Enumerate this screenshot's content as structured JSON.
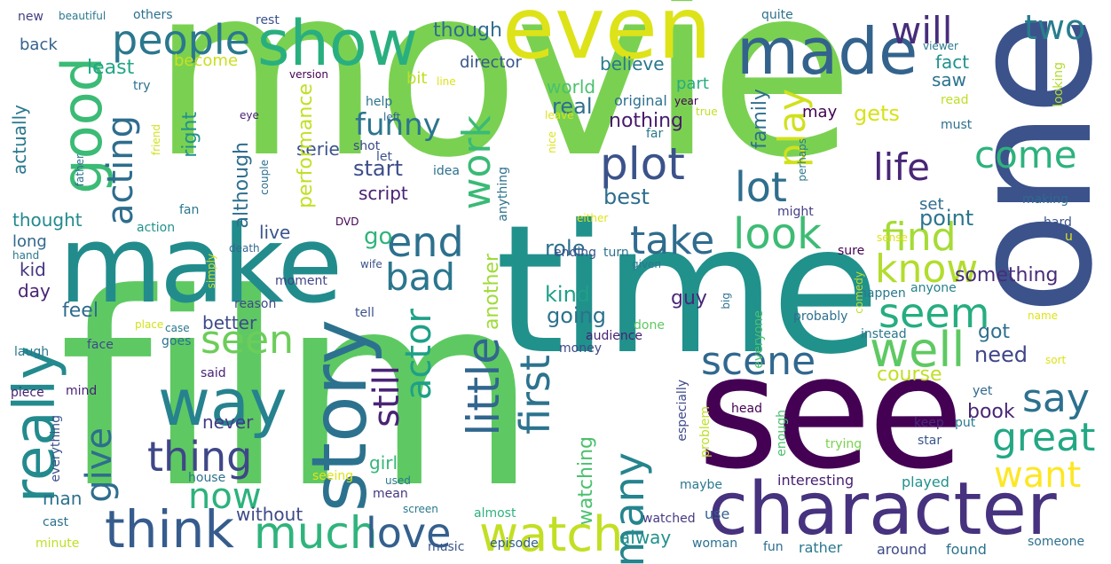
{
  "words": [
    {
      "key": "movie",
      "text": "movie",
      "color": "#7ad151"
    },
    {
      "key": "film",
      "text": "film",
      "color": "#5ec962"
    },
    {
      "key": "one",
      "text": "one",
      "color": "#3b528b"
    },
    {
      "key": "time",
      "text": "time",
      "color": "#21918c"
    },
    {
      "key": "see",
      "text": "see",
      "color": "#440154"
    },
    {
      "key": "make",
      "text": "make",
      "color": "#228c8d"
    },
    {
      "key": "even",
      "text": "even",
      "color": "#dde318"
    },
    {
      "key": "character",
      "text": "character",
      "color": "#46327e"
    },
    {
      "key": "story",
      "text": "story",
      "color": "#2c728e"
    },
    {
      "key": "show",
      "text": "show",
      "color": "#29af7f"
    },
    {
      "key": "made",
      "text": "made",
      "color": "#33638d"
    },
    {
      "key": "way",
      "text": "way",
      "color": "#26828e"
    },
    {
      "key": "good",
      "text": "good",
      "color": "#3bbb75"
    },
    {
      "key": "really",
      "text": "really",
      "color": "#238a8d"
    },
    {
      "key": "people",
      "text": "people",
      "color": "#2a788e"
    },
    {
      "key": "watch",
      "text": "watch",
      "color": "#c2df23"
    },
    {
      "key": "think",
      "text": "think",
      "color": "#365c8d"
    },
    {
      "key": "much",
      "text": "much",
      "color": "#2fb47c"
    },
    {
      "key": "plot",
      "text": "plot",
      "color": "#3b528b"
    },
    {
      "key": "end",
      "text": "end",
      "color": "#2d708e"
    },
    {
      "key": "take",
      "text": "take",
      "color": "#2f6c8e"
    },
    {
      "key": "look",
      "text": "look",
      "color": "#3dbc74"
    },
    {
      "key": "scene",
      "text": "scene",
      "color": "#31688e"
    },
    {
      "key": "well",
      "text": "well",
      "color": "#5ec962"
    },
    {
      "key": "seem",
      "text": "seem",
      "color": "#26ad81"
    },
    {
      "key": "know",
      "text": "know",
      "color": "#b2dd2d"
    },
    {
      "key": "find",
      "text": "find",
      "color": "#a5db36"
    },
    {
      "key": "life",
      "text": "life",
      "color": "#482677"
    },
    {
      "key": "lot",
      "text": "lot",
      "color": "#2e6e8e"
    },
    {
      "key": "come",
      "text": "come",
      "color": "#2db27d"
    },
    {
      "key": "will",
      "text": "will",
      "color": "#472d7b"
    },
    {
      "key": "two",
      "text": "two",
      "color": "#287d8e"
    },
    {
      "key": "work",
      "text": "work",
      "color": "#3aba76"
    },
    {
      "key": "play",
      "text": "play",
      "color": "#d0e11c"
    },
    {
      "key": "little",
      "text": "little",
      "color": "#31678e"
    },
    {
      "key": "first",
      "text": "first",
      "color": "#2c738e"
    },
    {
      "key": "still",
      "text": "still",
      "color": "#482475"
    },
    {
      "key": "actor",
      "text": "actor",
      "color": "#1fa088"
    },
    {
      "key": "bad",
      "text": "bad",
      "color": "#2a768e"
    },
    {
      "key": "seen",
      "text": "seen",
      "color": "#6ccd5a"
    },
    {
      "key": "thing",
      "text": "thing",
      "color": "#3f4788"
    },
    {
      "key": "acting",
      "text": "acting",
      "color": "#2e6d8e"
    },
    {
      "key": "give",
      "text": "give",
      "color": "#2e6e8e"
    },
    {
      "key": "many",
      "text": "many",
      "color": "#25848e"
    },
    {
      "key": "love",
      "text": "love",
      "color": "#34608d"
    },
    {
      "key": "great",
      "text": "great",
      "color": "#22a884"
    },
    {
      "key": "want",
      "text": "want",
      "color": "#fde725"
    },
    {
      "key": "say",
      "text": "say",
      "color": "#2c718e"
    },
    {
      "key": "now",
      "text": "now",
      "color": "#2db27d"
    },
    {
      "key": "may",
      "text": "may",
      "color": "#440154"
    },
    {
      "key": "serie",
      "text": "serie",
      "color": "#3b528b"
    },
    {
      "key": "back",
      "text": "back",
      "color": "#34618d"
    },
    {
      "key": "least",
      "text": "least",
      "color": "#22a785"
    },
    {
      "key": "become",
      "text": "become",
      "color": "#c8e020"
    },
    {
      "key": "though",
      "text": "though",
      "color": "#2e6e8e"
    },
    {
      "key": "bit",
      "text": "bit",
      "color": "#bddf26"
    },
    {
      "key": "director",
      "text": "director",
      "color": "#39568c"
    },
    {
      "key": "believe",
      "text": "believe",
      "color": "#2a788e"
    },
    {
      "key": "part",
      "text": "part",
      "color": "#25ab82"
    },
    {
      "key": "fact",
      "text": "fact",
      "color": "#21918c"
    },
    {
      "key": "saw",
      "text": "saw",
      "color": "#2c738e"
    },
    {
      "key": "world",
      "text": "world",
      "color": "#4ac16d"
    },
    {
      "key": "real",
      "text": "real",
      "color": "#2d708e"
    },
    {
      "key": "nothing",
      "text": "nothing",
      "color": "#481a6c"
    },
    {
      "key": "funny",
      "text": "funny",
      "color": "#2b758e"
    },
    {
      "key": "actually",
      "text": "actually",
      "color": "#2a788e"
    },
    {
      "key": "performance",
      "text": "performance",
      "color": "#c2df23"
    },
    {
      "key": "family",
      "text": "family",
      "color": "#2d708e"
    },
    {
      "key": "gets",
      "text": "gets",
      "color": "#d8e219"
    },
    {
      "key": "right",
      "text": "right",
      "color": "#21918c"
    },
    {
      "key": "although",
      "text": "although",
      "color": "#2e6f8e"
    },
    {
      "key": "start",
      "text": "start",
      "color": "#3d4e8a"
    },
    {
      "key": "script",
      "text": "script",
      "color": "#482173"
    },
    {
      "key": "best",
      "text": "best",
      "color": "#2e6e8e"
    },
    {
      "key": "thought",
      "text": "thought",
      "color": "#23898e"
    },
    {
      "key": "point",
      "text": "point",
      "color": "#2b758e"
    },
    {
      "key": "set",
      "text": "set",
      "color": "#2f6c8e"
    },
    {
      "key": "live",
      "text": "live",
      "color": "#39558c"
    },
    {
      "key": "go",
      "text": "go",
      "color": "#2fb47c"
    },
    {
      "key": "role",
      "text": "role",
      "color": "#2d708e"
    },
    {
      "key": "kind",
      "text": "kind",
      "color": "#1f9f88"
    },
    {
      "key": "another",
      "text": "another",
      "color": "#a0da39"
    },
    {
      "key": "guy",
      "text": "guy",
      "color": "#482878"
    },
    {
      "key": "something",
      "text": "something",
      "color": "#472c7a"
    },
    {
      "key": "kid",
      "text": "kid",
      "color": "#453781"
    },
    {
      "key": "day",
      "text": "day",
      "color": "#482374"
    },
    {
      "key": "feel",
      "text": "feel",
      "color": "#2f6b8e"
    },
    {
      "key": "better",
      "text": "better",
      "color": "#3e4a89"
    },
    {
      "key": "going",
      "text": "going",
      "color": "#2c728e"
    },
    {
      "key": "got",
      "text": "got",
      "color": "#2e6f8e"
    },
    {
      "key": "need",
      "text": "need",
      "color": "#404588"
    },
    {
      "key": "course",
      "text": "course",
      "color": "#c0df25"
    },
    {
      "key": "book",
      "text": "book",
      "color": "#482576"
    },
    {
      "key": "never",
      "text": "never",
      "color": "#433e85"
    },
    {
      "key": "girl",
      "text": "girl",
      "color": "#35b779"
    },
    {
      "key": "watching",
      "text": "watching",
      "color": "#4ac16d"
    },
    {
      "key": "without",
      "text": "without",
      "color": "#3e4989"
    },
    {
      "key": "man",
      "text": "man",
      "color": "#2c718e"
    },
    {
      "key": "alway",
      "text": "alway",
      "color": "#21918c"
    },
    {
      "key": "action",
      "text": "action",
      "color": "#21918c"
    },
    {
      "key": "fan",
      "text": "fan",
      "color": "#2a788e"
    },
    {
      "key": "long",
      "text": "long",
      "color": "#31688e"
    },
    {
      "key": "help",
      "text": "help",
      "color": "#2c728e"
    },
    {
      "key": "original",
      "text": "original",
      "color": "#2d708e"
    },
    {
      "key": "looking",
      "text": "looking",
      "color": "#b2dd2d"
    },
    {
      "key": "read",
      "text": "read",
      "color": "#bddf26"
    },
    {
      "key": "must",
      "text": "must",
      "color": "#2c718e"
    },
    {
      "key": "making",
      "text": "making",
      "color": "#30698e"
    },
    {
      "key": "might",
      "text": "might",
      "color": "#433e85"
    },
    {
      "key": "sure",
      "text": "sure",
      "color": "#440154"
    },
    {
      "key": "hard",
      "text": "hard",
      "color": "#3b528b"
    },
    {
      "key": "anyone",
      "text": "anyone",
      "color": "#26828e"
    },
    {
      "key": "happen",
      "text": "happen",
      "color": "#2a788e"
    },
    {
      "key": "probably",
      "text": "probably",
      "color": "#2c718e"
    },
    {
      "key": "instead",
      "text": "instead",
      "color": "#2a768e"
    },
    {
      "key": "interesting",
      "text": "interesting",
      "color": "#482173"
    },
    {
      "key": "played",
      "text": "played",
      "color": "#21918c"
    },
    {
      "key": "especially",
      "text": "especially",
      "color": "#3e4a89"
    },
    {
      "key": "trying",
      "text": "trying",
      "color": "#7ad151"
    },
    {
      "key": "star",
      "text": "star",
      "color": "#39568c"
    },
    {
      "key": "keep",
      "text": "keep",
      "color": "#472c7a"
    },
    {
      "key": "put",
      "text": "put",
      "color": "#2a788e"
    },
    {
      "key": "yet",
      "text": "yet",
      "color": "#31688e"
    },
    {
      "key": "around",
      "text": "around",
      "color": "#3e4989"
    },
    {
      "key": "found",
      "text": "found",
      "color": "#2c728e"
    },
    {
      "key": "someone",
      "text": "someone",
      "color": "#2d708e"
    },
    {
      "key": "rather",
      "text": "rather",
      "color": "#2a788e"
    },
    {
      "key": "fun",
      "text": "fun",
      "color": "#2e6e8e"
    },
    {
      "key": "woman",
      "text": "woman",
      "color": "#2c718e"
    },
    {
      "key": "use",
      "text": "use",
      "color": "#34608d"
    },
    {
      "key": "watched",
      "text": "watched",
      "color": "#443a83"
    },
    {
      "key": "maybe",
      "text": "maybe",
      "color": "#2a788e"
    },
    {
      "key": "almost",
      "text": "almost",
      "color": "#2db27d"
    },
    {
      "key": "audience",
      "text": "audience",
      "color": "#482173"
    },
    {
      "key": "money",
      "text": "money",
      "color": "#3e4a89"
    },
    {
      "key": "done",
      "text": "done",
      "color": "#5ec962"
    },
    {
      "key": "ending",
      "text": "ending",
      "color": "#3b528b"
    },
    {
      "key": "turn",
      "text": "turn",
      "color": "#2c718e"
    },
    {
      "key": "DVD",
      "text": "DVD",
      "color": "#440154"
    },
    {
      "key": "death",
      "text": "death",
      "color": "#31688e"
    },
    {
      "key": "wife",
      "text": "wife",
      "color": "#3b528b"
    },
    {
      "key": "moment",
      "text": "moment",
      "color": "#404588"
    },
    {
      "key": "reason",
      "text": "reason",
      "color": "#3e4a89"
    },
    {
      "key": "tell",
      "text": "tell",
      "color": "#3b528b"
    },
    {
      "key": "said",
      "text": "said",
      "color": "#482374"
    },
    {
      "key": "goes",
      "text": "goes",
      "color": "#2c718e"
    },
    {
      "key": "case",
      "text": "case",
      "color": "#2a788e"
    },
    {
      "key": "place",
      "text": "place",
      "color": "#d2e21b"
    },
    {
      "key": "face",
      "text": "face",
      "color": "#3e4989"
    },
    {
      "key": "laugh",
      "text": "laugh",
      "color": "#2a768e"
    },
    {
      "key": "piece",
      "text": "piece",
      "color": "#482173"
    },
    {
      "key": "mind",
      "text": "mind",
      "color": "#482374"
    },
    {
      "key": "everything",
      "text": "everything",
      "color": "#3b528b"
    },
    {
      "key": "couple",
      "text": "couple",
      "color": "#2d708e"
    },
    {
      "key": "used",
      "text": "used",
      "color": "#2a788e"
    },
    {
      "key": "house",
      "text": "house",
      "color": "#2c728e"
    },
    {
      "key": "seeing",
      "text": "seeing",
      "color": "#dde318"
    },
    {
      "key": "mean",
      "text": "mean",
      "color": "#453781"
    },
    {
      "key": "cast",
      "text": "cast",
      "color": "#2c718e"
    },
    {
      "key": "minute",
      "text": "minute",
      "color": "#bddf26"
    },
    {
      "key": "screen",
      "text": "screen",
      "color": "#2a788e"
    },
    {
      "key": "episode",
      "text": "episode",
      "color": "#34608d"
    },
    {
      "key": "music",
      "text": "music",
      "color": "#39568c"
    },
    {
      "key": "new",
      "text": "new",
      "color": "#433e85"
    },
    {
      "key": "beautiful",
      "text": "beautiful",
      "color": "#2a788e"
    },
    {
      "key": "others",
      "text": "others",
      "color": "#2c718e"
    },
    {
      "key": "rest",
      "text": "rest",
      "color": "#3b528b"
    },
    {
      "key": "version",
      "text": "version",
      "color": "#440154"
    },
    {
      "key": "quite",
      "text": "quite",
      "color": "#2c728e"
    },
    {
      "key": "viewer",
      "text": "viewer",
      "color": "#2a788e"
    },
    {
      "key": "try",
      "text": "try",
      "color": "#2c718e"
    },
    {
      "key": "line",
      "text": "line",
      "color": "#dde318"
    },
    {
      "key": "year",
      "text": "year",
      "color": "#440154"
    },
    {
      "key": "eye",
      "text": "eye",
      "color": "#482173"
    },
    {
      "key": "left",
      "text": "left",
      "color": "#31688e"
    },
    {
      "key": "true",
      "text": "true",
      "color": "#c0df25"
    },
    {
      "key": "leave",
      "text": "leave",
      "color": "#dde318"
    },
    {
      "key": "father",
      "text": "father",
      "color": "#2c718e"
    },
    {
      "key": "friend",
      "text": "friend",
      "color": "#d2e21b"
    },
    {
      "key": "shot",
      "text": "shot",
      "color": "#3e4989"
    },
    {
      "key": "nice",
      "text": "nice",
      "color": "#dde318"
    },
    {
      "key": "far",
      "text": "far",
      "color": "#2a788e"
    },
    {
      "key": "idea",
      "text": "idea",
      "color": "#2c718e"
    },
    {
      "key": "perhaps",
      "text": "perhaps",
      "color": "#2a788e"
    },
    {
      "key": "let",
      "text": "let",
      "color": "#3b528b"
    },
    {
      "key": "anything",
      "text": "anything",
      "color": "#2c718e"
    },
    {
      "key": "either",
      "text": "either",
      "color": "#dde318"
    },
    {
      "key": "given",
      "text": "given",
      "color": "#2a788e"
    },
    {
      "key": "simply",
      "text": "simply",
      "color": "#d2e21b"
    },
    {
      "key": "hand",
      "text": "hand",
      "color": "#2a788e"
    },
    {
      "key": "sense",
      "text": "sense",
      "color": "#dde318"
    },
    {
      "key": "comedy",
      "text": "comedy",
      "color": "#bddf26"
    },
    {
      "key": "big",
      "text": "big",
      "color": "#2c718e"
    },
    {
      "key": "everyone",
      "text": "everyone",
      "color": "#4ac16d"
    },
    {
      "key": "name",
      "text": "name",
      "color": "#dde318"
    },
    {
      "key": "sort",
      "text": "sort",
      "color": "#dde318"
    },
    {
      "key": "u",
      "text": "u",
      "color": "#dde318"
    },
    {
      "key": "head",
      "text": "head",
      "color": "#440154"
    },
    {
      "key": "enough",
      "text": "enough",
      "color": "#4ac16d"
    },
    {
      "key": "problem",
      "text": "problem",
      "color": "#bddf26"
    }
  ]
}
